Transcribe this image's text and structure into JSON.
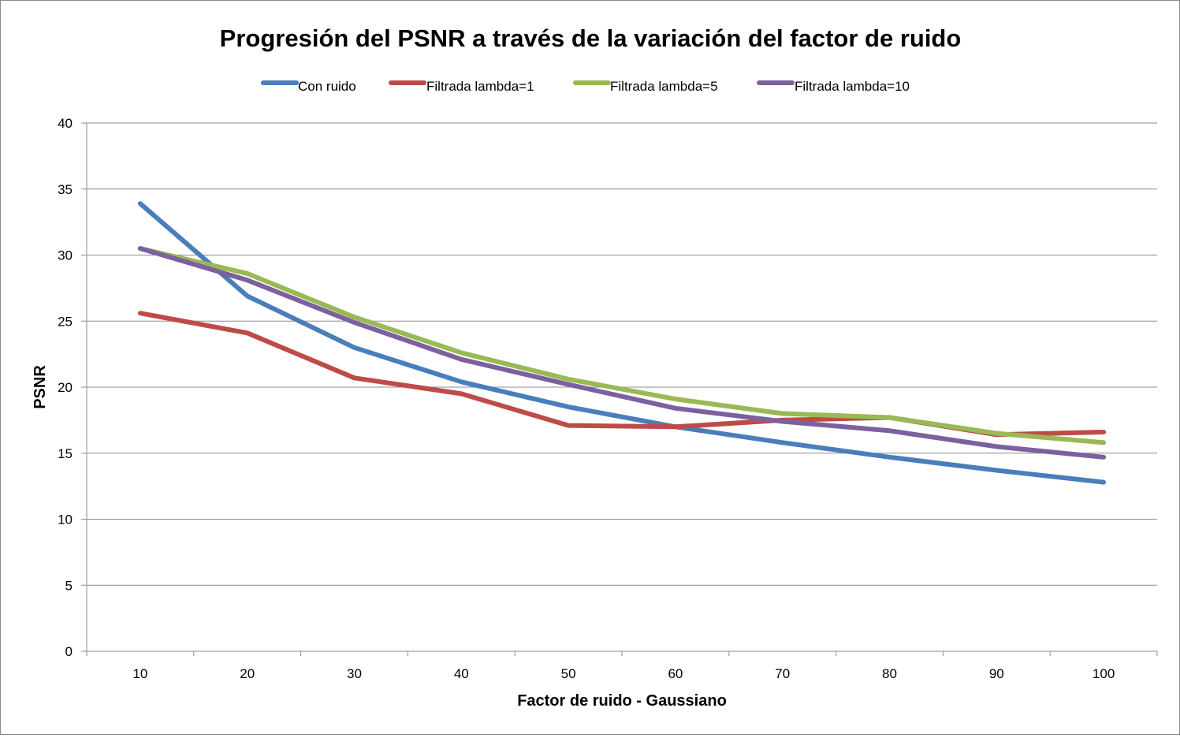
{
  "chart_data": {
    "type": "line",
    "title": "Progresión del PSNR a través de la variación del factor de ruido",
    "xlabel": "Factor de ruido - Gaussiano",
    "ylabel": "PSNR",
    "categories": [
      "10",
      "20",
      "30",
      "40",
      "50",
      "60",
      "70",
      "80",
      "90",
      "100"
    ],
    "ylim": [
      0,
      40
    ],
    "yticks": [
      "0",
      "5",
      "10",
      "15",
      "20",
      "25",
      "30",
      "35",
      "40"
    ],
    "grid": true,
    "legend_position": "top",
    "series": [
      {
        "name": "Con ruido",
        "color": "#4a7ebb",
        "values": [
          33.9,
          26.9,
          23.0,
          20.4,
          18.5,
          17.0,
          15.8,
          14.7,
          13.7,
          12.8
        ]
      },
      {
        "name": "Filtrada lambda=1",
        "color": "#be4b48",
        "values": [
          25.6,
          24.1,
          20.7,
          19.5,
          17.1,
          17.0,
          17.5,
          17.7,
          16.4,
          16.6
        ]
      },
      {
        "name": "Filtrada lambda=5",
        "color": "#98b954",
        "values": [
          30.5,
          28.6,
          25.3,
          22.6,
          20.6,
          19.1,
          18.0,
          17.7,
          16.5,
          15.8
        ]
      },
      {
        "name": "Filtrada lambda=10",
        "color": "#7d60a0",
        "values": [
          30.5,
          28.1,
          24.9,
          22.1,
          20.2,
          18.4,
          17.4,
          16.7,
          15.5,
          14.7
        ]
      }
    ]
  }
}
